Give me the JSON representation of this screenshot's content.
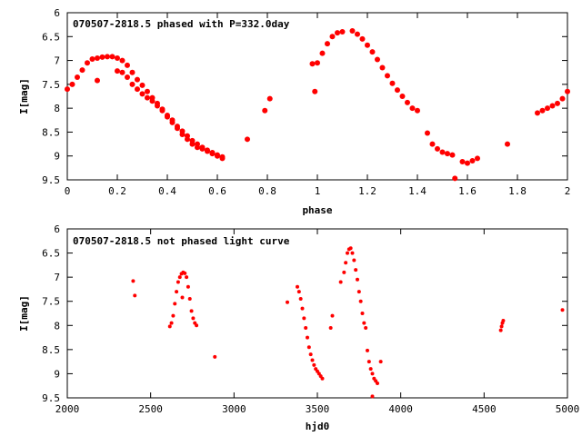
{
  "chart_data": [
    {
      "type": "scatter",
      "title": "070507-2818.5 phased with P=332.0day",
      "xlabel": "phase",
      "ylabel": "I[mag]",
      "xlim": [
        0,
        2
      ],
      "ylim": [
        9.5,
        6
      ],
      "y_inverted": true,
      "grid": false,
      "x_ticks": [
        0,
        0.2,
        0.4,
        0.6,
        0.8,
        1,
        1.2,
        1.4,
        1.6,
        1.8,
        2
      ],
      "x_tick_labels": [
        "0",
        "0.2",
        "0.4",
        "0.6",
        "0.8",
        "1",
        "1.2",
        "1.4",
        "1.6",
        "1.8",
        "2"
      ],
      "y_ticks": [
        6,
        6.5,
        7,
        7.5,
        8,
        8.5,
        9,
        9.5
      ],
      "y_tick_labels": [
        "6",
        "6.5",
        "7",
        "7.5",
        "8",
        "8.5",
        "9",
        "9.5"
      ],
      "color": "#ff0000",
      "series": [
        {
          "x": [
            0.0,
            0.02,
            0.04,
            0.06,
            0.08,
            0.1,
            0.12,
            0.14,
            0.16,
            0.18,
            0.2,
            0.22,
            0.24,
            0.26,
            0.28,
            0.3,
            0.32,
            0.34,
            0.36,
            0.38,
            0.4,
            0.42,
            0.44,
            0.46,
            0.48,
            0.5,
            0.52,
            0.54,
            0.56,
            0.58,
            0.6,
            0.62,
            0.2,
            0.22,
            0.24,
            0.26,
            0.28,
            0.3,
            0.32,
            0.34,
            0.36,
            0.38,
            0.4,
            0.42,
            0.44,
            0.46,
            0.48,
            0.5,
            0.52,
            0.54,
            0.56,
            0.58,
            0.6,
            0.62,
            0.12,
            0.72,
            0.79,
            0.81,
            0.98,
            0.99,
            1.0,
            1.02,
            1.04,
            1.06,
            1.08,
            1.1,
            1.14,
            1.16,
            1.18,
            1.2,
            1.22,
            1.24,
            1.26,
            1.28,
            1.3,
            1.32,
            1.34,
            1.36,
            1.38,
            1.4,
            1.44,
            1.46,
            1.48,
            1.5,
            1.52,
            1.54,
            1.55,
            1.58,
            1.6,
            1.62,
            1.64,
            1.76,
            1.88,
            1.9,
            1.92,
            1.94,
            1.96,
            1.98,
            2.0
          ],
          "y": [
            7.6,
            7.5,
            7.35,
            7.2,
            7.05,
            6.97,
            6.95,
            6.93,
            6.92,
            6.92,
            6.95,
            7.0,
            7.1,
            7.25,
            7.4,
            7.52,
            7.65,
            7.78,
            7.9,
            8.02,
            8.15,
            8.25,
            8.38,
            8.48,
            8.58,
            8.68,
            8.75,
            8.82,
            8.88,
            8.93,
            8.98,
            9.02,
            7.22,
            7.25,
            7.35,
            7.5,
            7.6,
            7.7,
            7.78,
            7.85,
            7.95,
            8.05,
            8.18,
            8.3,
            8.42,
            8.55,
            8.65,
            8.75,
            8.82,
            8.85,
            8.9,
            8.95,
            9.0,
            9.05,
            7.42,
            8.65,
            8.05,
            7.8,
            7.07,
            7.65,
            7.05,
            6.85,
            6.65,
            6.5,
            6.42,
            6.4,
            6.38,
            6.45,
            6.55,
            6.68,
            6.82,
            6.98,
            7.15,
            7.32,
            7.48,
            7.62,
            7.75,
            7.88,
            8.0,
            8.05,
            8.52,
            8.75,
            8.85,
            8.92,
            8.95,
            8.98,
            9.47,
            9.12,
            9.15,
            9.1,
            9.05,
            8.75,
            8.1,
            8.05,
            8.0,
            7.95,
            7.9,
            7.8,
            7.65
          ]
        }
      ]
    },
    {
      "type": "scatter",
      "title": "070507-2818.5 not phased light curve",
      "xlabel": "hjd0",
      "ylabel": "I[mag]",
      "xlim": [
        2000,
        5000
      ],
      "ylim": [
        9.5,
        6
      ],
      "y_inverted": true,
      "grid": false,
      "x_ticks": [
        2000,
        2500,
        3000,
        3500,
        4000,
        4500,
        5000
      ],
      "x_tick_labels": [
        "2000",
        "2500",
        "3000",
        "3500",
        "4000",
        "4500",
        "5000"
      ],
      "y_ticks": [
        6,
        6.5,
        7,
        7.5,
        8,
        8.5,
        9,
        9.5
      ],
      "y_tick_labels": [
        "6",
        "6.5",
        "7",
        "7.5",
        "8",
        "8.5",
        "9",
        "9.5"
      ],
      "color": "#ff0000",
      "series": [
        {
          "x": [
            2395,
            2405,
            2615,
            2625,
            2635,
            2645,
            2655,
            2665,
            2675,
            2685,
            2695,
            2705,
            2715,
            2725,
            2735,
            2745,
            2755,
            2765,
            2775,
            2690,
            2885,
            3320,
            3380,
            3390,
            3400,
            3410,
            3420,
            3430,
            3440,
            3450,
            3460,
            3470,
            3480,
            3490,
            3500,
            3510,
            3520,
            3530,
            3580,
            3590,
            3640,
            3660,
            3670,
            3680,
            3690,
            3700,
            3710,
            3720,
            3730,
            3740,
            3750,
            3760,
            3770,
            3780,
            3790,
            3800,
            3810,
            3820,
            3830,
            3840,
            3850,
            3860,
            3880,
            3830,
            4600,
            4605,
            4610,
            4615,
            4970
          ],
          "y": [
            7.08,
            7.38,
            8.02,
            7.95,
            7.8,
            7.55,
            7.3,
            7.1,
            7.0,
            6.93,
            6.9,
            6.92,
            7.0,
            7.2,
            7.45,
            7.7,
            7.85,
            7.95,
            8.0,
            7.42,
            8.65,
            7.52,
            7.2,
            7.3,
            7.45,
            7.65,
            7.85,
            8.05,
            8.25,
            8.45,
            8.6,
            8.72,
            8.82,
            8.9,
            8.95,
            9.0,
            9.05,
            9.1,
            8.05,
            7.8,
            7.1,
            6.9,
            6.7,
            6.5,
            6.42,
            6.4,
            6.5,
            6.65,
            6.85,
            7.05,
            7.3,
            7.5,
            7.75,
            7.95,
            8.05,
            8.52,
            8.75,
            8.9,
            9.0,
            9.1,
            9.15,
            9.2,
            8.75,
            9.47,
            8.1,
            8.02,
            7.95,
            7.9,
            7.68
          ]
        }
      ]
    }
  ]
}
